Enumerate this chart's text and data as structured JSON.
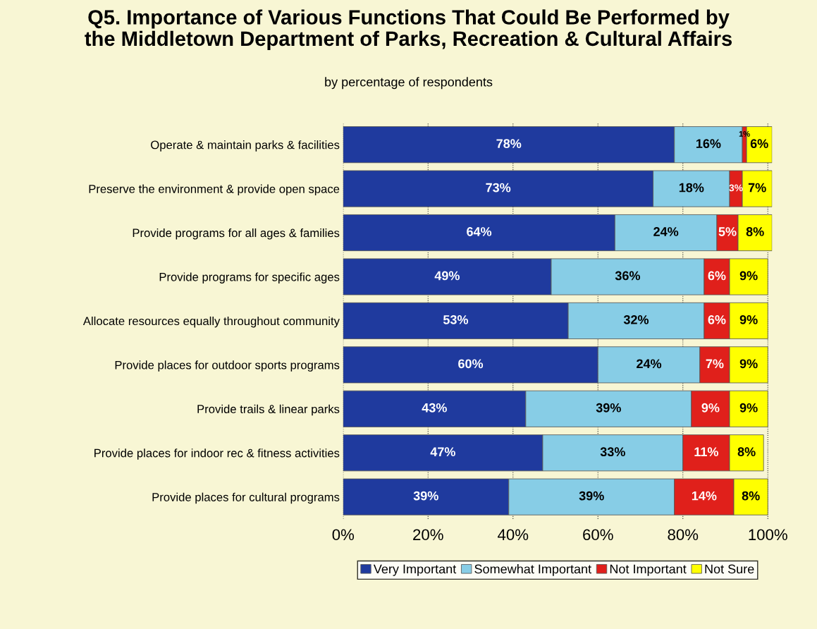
{
  "chart_data": {
    "type": "bar",
    "orientation": "horizontal",
    "stacked": true,
    "title": "Q5. Importance of Various Functions That Could Be Performed by\nthe Middletown Department of Parks, Recreation & Cultural Affairs",
    "subtitle": "by percentage of respondents",
    "categories": [
      "Operate & maintain parks & facilities",
      "Preserve the environment & provide open space",
      "Provide programs for all ages & families",
      "Provide programs for specific ages",
      "Allocate resources equally throughout community",
      "Provide places for outdoor sports programs",
      "Provide trails & linear parks",
      "Provide places for indoor rec & fitness activities",
      "Provide places for cultural programs"
    ],
    "series": [
      {
        "name": "Very Important",
        "color": "#1f3a9e",
        "values": [
          78,
          73,
          64,
          49,
          53,
          60,
          43,
          47,
          39
        ],
        "value_labels": [
          "78%",
          "73%",
          "64%",
          "49%",
          "53%",
          "60%",
          "43%",
          "47%",
          "39%"
        ]
      },
      {
        "name": "Somewhat Important",
        "color": "#87cde6",
        "values": [
          16,
          18,
          24,
          36,
          32,
          24,
          39,
          33,
          39
        ],
        "value_labels": [
          "16%",
          "18%",
          "24%",
          "36%",
          "32%",
          "24%",
          "39%",
          "33%",
          "39%"
        ]
      },
      {
        "name": "Not Important",
        "color": "#e0201b",
        "values": [
          1,
          3,
          5,
          6,
          6,
          7,
          9,
          11,
          14
        ],
        "value_labels": [
          "1%",
          "3%",
          "5%",
          "6%",
          "6%",
          "7%",
          "9%",
          "11%",
          "14%"
        ]
      },
      {
        "name": "Not Sure",
        "color": "#ffff00",
        "values": [
          6,
          7,
          8,
          9,
          9,
          9,
          9,
          8,
          8
        ],
        "value_labels": [
          "6%",
          "7%",
          "8%",
          "9%",
          "9%",
          "9%",
          "9%",
          "8%",
          "8%"
        ]
      }
    ],
    "xlim": [
      0,
      101
    ],
    "xticks": [
      {
        "value": 0,
        "label": "0%"
      },
      {
        "value": 20,
        "label": "20%"
      },
      {
        "value": 40,
        "label": "40%"
      },
      {
        "value": 60,
        "label": "60%"
      },
      {
        "value": 80,
        "label": "80%"
      },
      {
        "value": 100,
        "label": "100%"
      }
    ],
    "grid": "x",
    "legend": "bottom"
  }
}
